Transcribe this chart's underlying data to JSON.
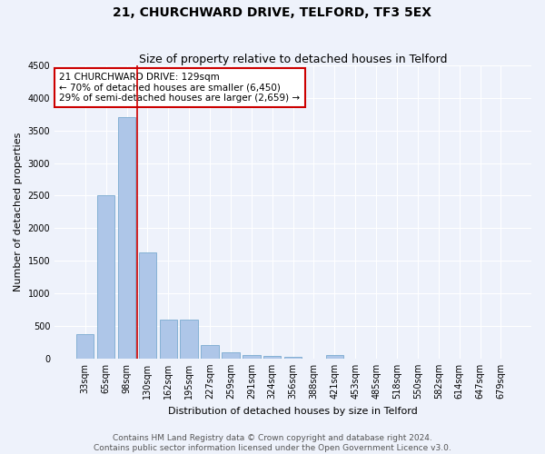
{
  "title": "21, CHURCHWARD DRIVE, TELFORD, TF3 5EX",
  "subtitle": "Size of property relative to detached houses in Telford",
  "xlabel": "Distribution of detached houses by size in Telford",
  "ylabel": "Number of detached properties",
  "categories": [
    "33sqm",
    "65sqm",
    "98sqm",
    "130sqm",
    "162sqm",
    "195sqm",
    "227sqm",
    "259sqm",
    "291sqm",
    "324sqm",
    "356sqm",
    "388sqm",
    "421sqm",
    "453sqm",
    "485sqm",
    "518sqm",
    "550sqm",
    "582sqm",
    "614sqm",
    "647sqm",
    "679sqm"
  ],
  "values": [
    370,
    2500,
    3700,
    1630,
    590,
    590,
    210,
    100,
    55,
    45,
    30,
    0,
    55,
    0,
    0,
    0,
    0,
    0,
    0,
    0,
    0
  ],
  "bar_color": "#aec6e8",
  "bar_edge_color": "#7aaad0",
  "marker_color": "#cc0000",
  "annotation_line1": "21 CHURCHWARD DRIVE: 129sqm",
  "annotation_line2": "← 70% of detached houses are smaller (6,450)",
  "annotation_line3": "29% of semi-detached houses are larger (2,659) →",
  "annotation_box_color": "white",
  "annotation_box_edge_color": "#cc0000",
  "ylim": [
    0,
    4500
  ],
  "yticks": [
    0,
    500,
    1000,
    1500,
    2000,
    2500,
    3000,
    3500,
    4000,
    4500
  ],
  "footer_line1": "Contains HM Land Registry data © Crown copyright and database right 2024.",
  "footer_line2": "Contains public sector information licensed under the Open Government Licence v3.0.",
  "bg_color": "#eef2fb",
  "grid_color": "#ffffff",
  "title_fontsize": 10,
  "subtitle_fontsize": 9,
  "axis_label_fontsize": 8,
  "tick_fontsize": 7,
  "annotation_fontsize": 7.5,
  "footer_fontsize": 6.5
}
